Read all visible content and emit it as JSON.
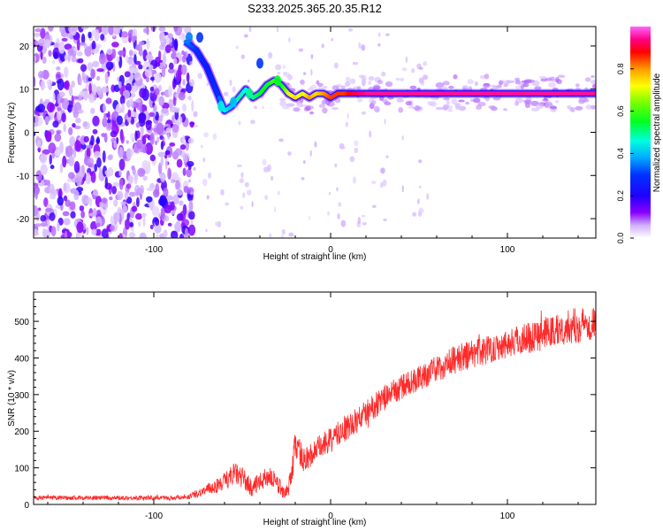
{
  "title": "S233.2025.365.20.35.R12",
  "colorbar": {
    "label": "Normalized spectral amplitude",
    "ticks": [
      "0.0",
      "0.2",
      "0.4",
      "0.6",
      "0.8"
    ]
  },
  "chart_data": [
    {
      "type": "heatmap",
      "xlabel": "Height of straight line (km)",
      "ylabel": "Frequency (Hz)",
      "xlim": [
        -168,
        150
      ],
      "ylim": [
        -24.5,
        24.5
      ],
      "xticks": [
        "-100",
        "0",
        "100"
      ],
      "yticks": [
        "-20",
        "-10",
        "0",
        "10",
        "20"
      ],
      "colorscale": [
        "#ffffff",
        "#b9a3ff",
        "#7a00ff",
        "#2a00ff",
        "#0000ff",
        "#00aaff",
        "#00ffdd",
        "#00ff33",
        "#55ff00",
        "#ffff00",
        "#ff9900",
        "#ff0000",
        "#ff0099",
        "#ff66ff"
      ],
      "noise_region_x": [
        -168,
        -84
      ],
      "ridge": {
        "x": [
          -82,
          -76,
          -70,
          -64,
          -60,
          -56,
          -52,
          -48,
          -44,
          -40,
          -36,
          -32,
          -28,
          -24,
          -20,
          -16,
          -12,
          -8,
          -4,
          0,
          4,
          8,
          12,
          20,
          40,
          60,
          80,
          100,
          120,
          150
        ],
        "freq_hz": [
          21,
          19,
          15,
          9,
          5,
          6,
          8,
          10,
          8,
          9,
          11,
          12,
          11,
          9,
          8,
          9,
          8,
          9,
          9,
          8,
          9,
          9,
          9,
          9,
          9,
          9,
          9,
          9,
          9,
          9
        ],
        "amplitude": [
          0.35,
          0.3,
          0.25,
          0.3,
          0.45,
          0.4,
          0.5,
          0.45,
          0.5,
          0.55,
          0.55,
          0.6,
          0.55,
          0.7,
          0.75,
          0.7,
          0.8,
          0.75,
          0.8,
          0.85,
          0.85,
          0.85,
          0.9,
          0.95,
          0.95,
          0.95,
          0.95,
          0.95,
          0.95,
          0.95
        ]
      }
    },
    {
      "type": "line",
      "xlabel": "Height of straight line (km)",
      "ylabel": "SNR (10 * v/v)",
      "xlim": [
        -168,
        150
      ],
      "ylim": [
        0,
        580
      ],
      "xticks": [
        "-100",
        "0",
        "100"
      ],
      "yticks": [
        "0",
        "100",
        "200",
        "300",
        "400",
        "500"
      ],
      "color": "#ff2a2a",
      "series": [
        {
          "x": [
            -168,
            -150,
            -130,
            -110,
            -90,
            -80,
            -70,
            -60,
            -55,
            -50,
            -45,
            -40,
            -35,
            -30,
            -25,
            -22,
            -20,
            -18,
            -15,
            -10,
            -5,
            0,
            5,
            10,
            20,
            30,
            40,
            50,
            60,
            70,
            80,
            90,
            100,
            110,
            120,
            130,
            140,
            150
          ],
          "values": [
            18,
            18,
            18,
            18,
            18,
            22,
            40,
            60,
            85,
            75,
            45,
            60,
            80,
            55,
            30,
            80,
            170,
            150,
            120,
            140,
            160,
            175,
            195,
            210,
            250,
            290,
            320,
            345,
            370,
            395,
            410,
            425,
            440,
            455,
            465,
            480,
            490,
            500
          ],
          "noise_amplitude": [
            6,
            6,
            6,
            6,
            6,
            8,
            15,
            25,
            30,
            30,
            25,
            25,
            30,
            25,
            20,
            30,
            45,
            40,
            35,
            35,
            35,
            35,
            35,
            35,
            35,
            35,
            35,
            35,
            35,
            40,
            40,
            40,
            40,
            45,
            45,
            45,
            50,
            50
          ]
        }
      ]
    }
  ]
}
